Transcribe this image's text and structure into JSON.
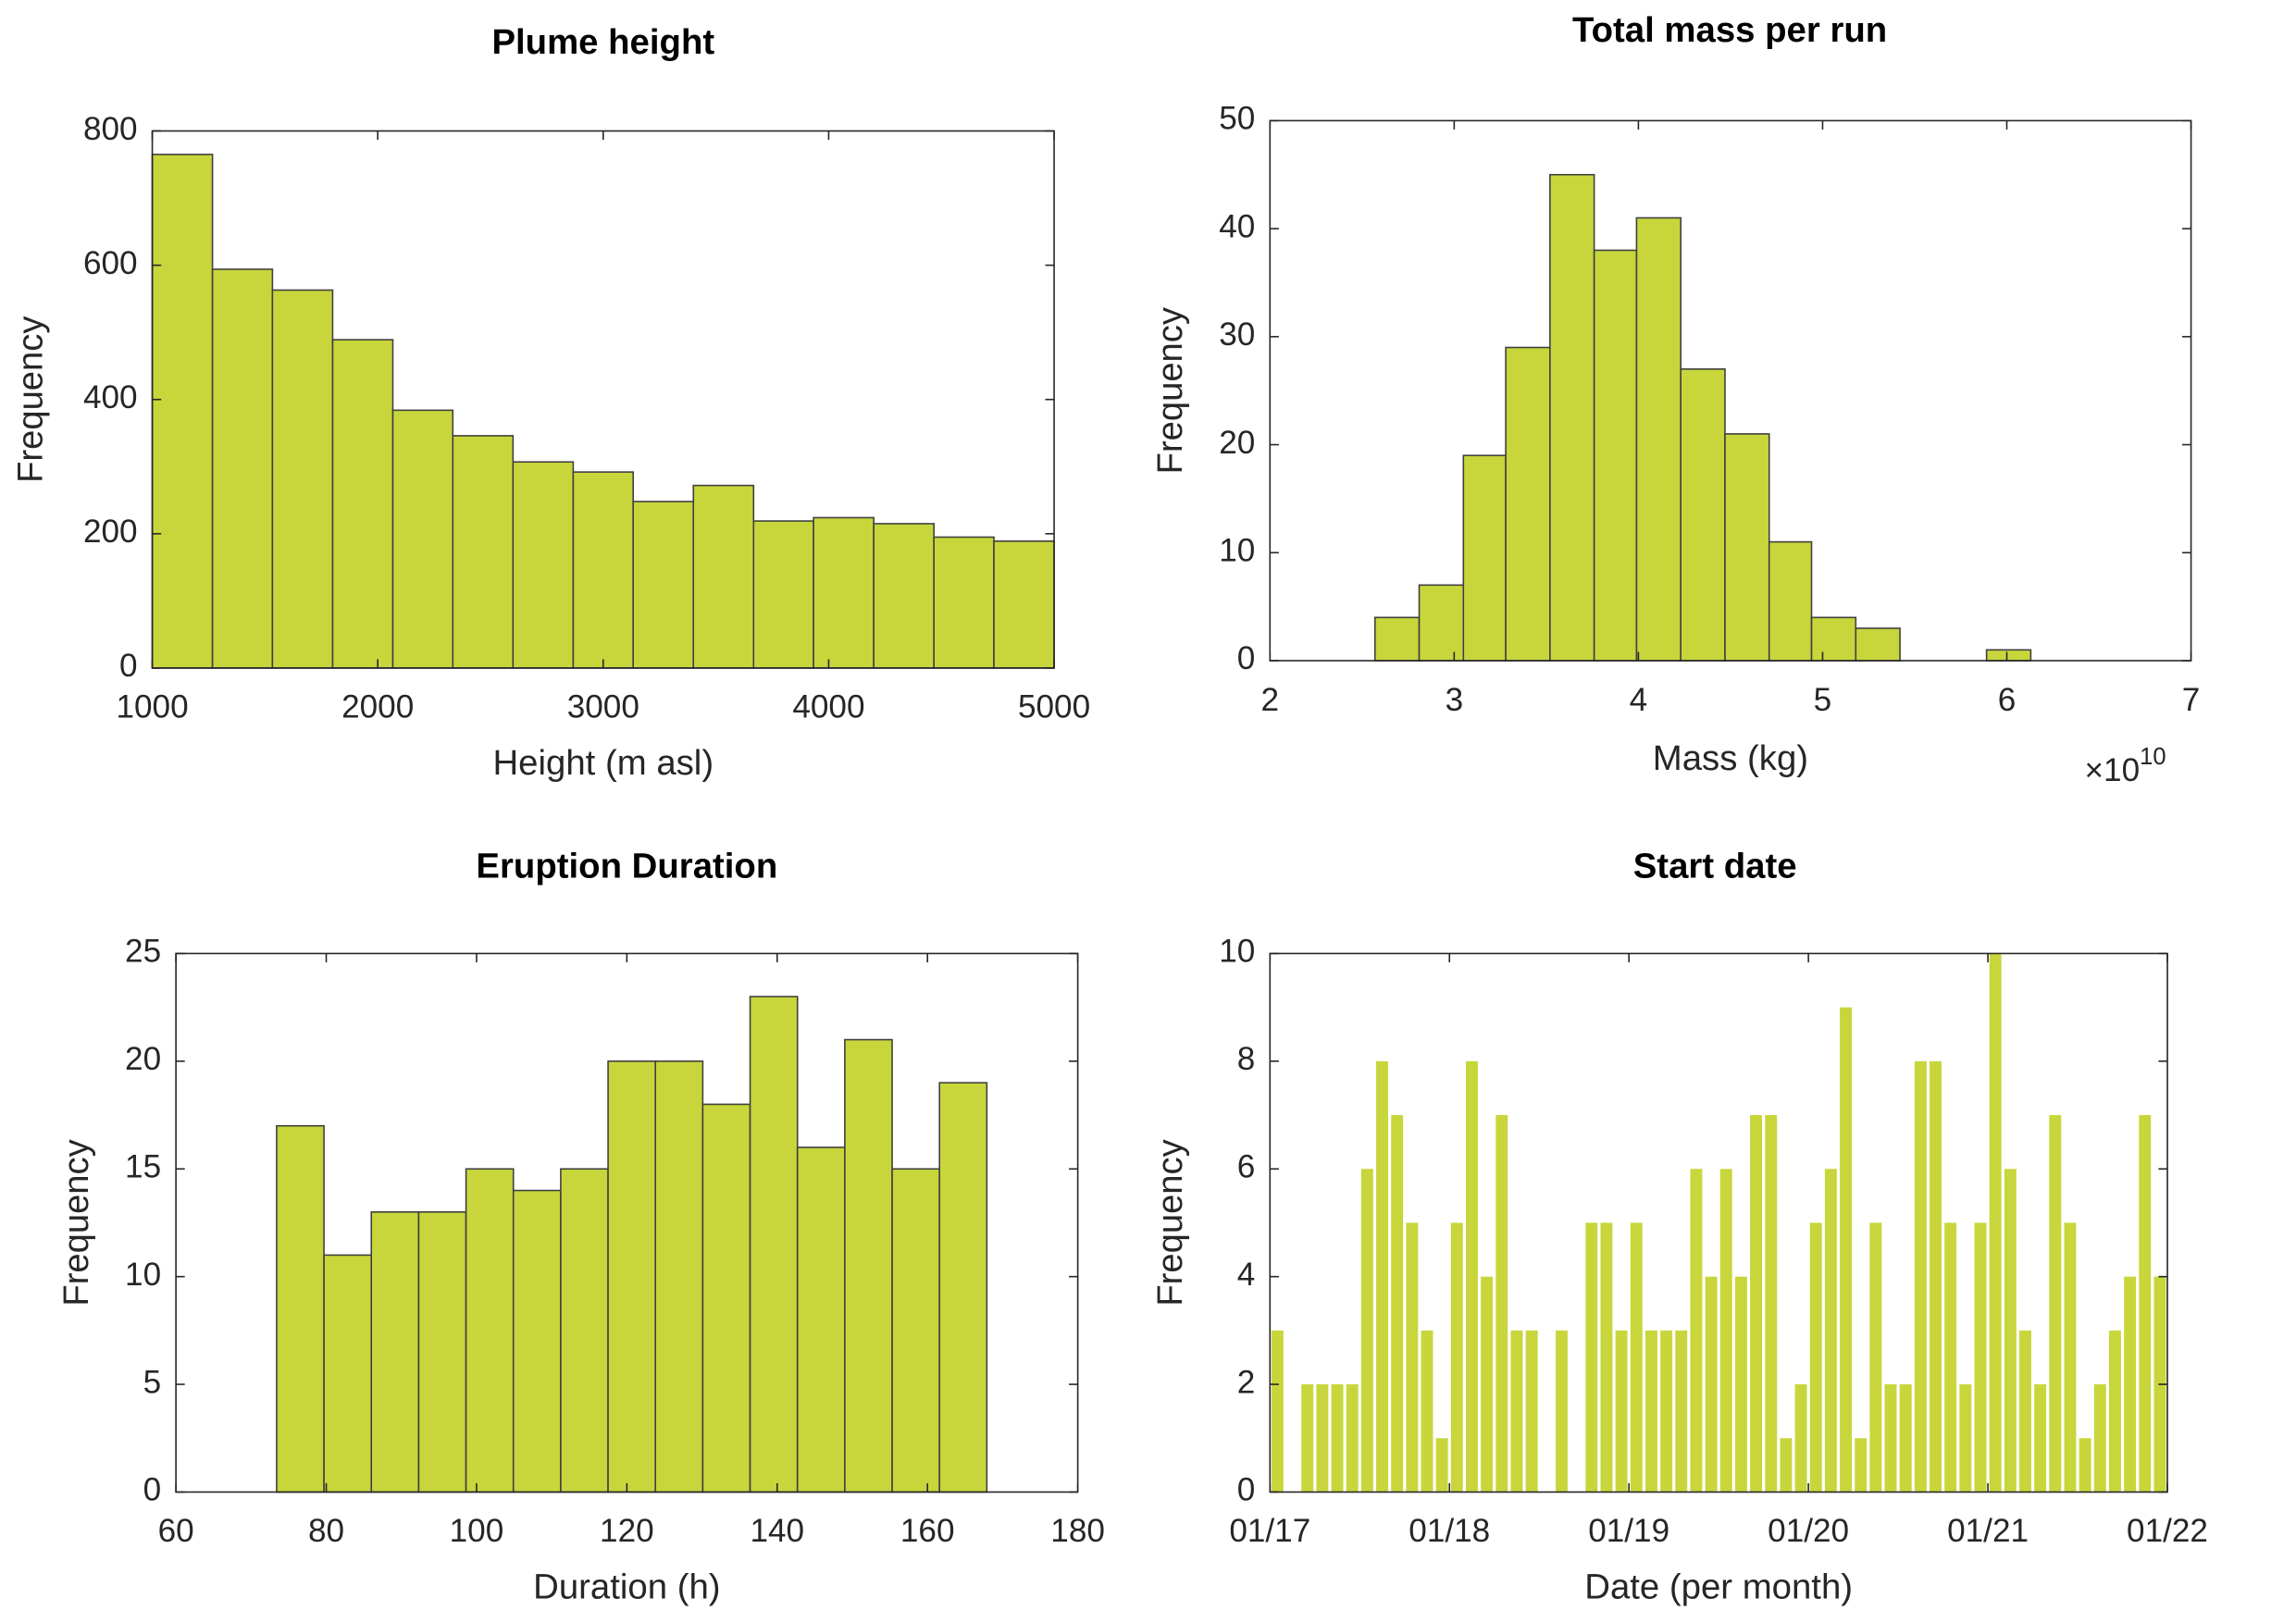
{
  "chart_data": [
    {
      "type": "histogram",
      "title": "Plume height",
      "x_label": "Height (m asl)",
      "y_label": "Frequency",
      "bins": [
        1000,
        1267,
        1533,
        1800,
        2067,
        2333,
        2600,
        2867,
        3133,
        3400,
        3667,
        3933,
        4200,
        4467,
        4733,
        5000
      ],
      "values": [
        765,
        594,
        563,
        489,
        384,
        346,
        307,
        292,
        248,
        272,
        219,
        224,
        215,
        195,
        189
      ],
      "color": "#c8d63c",
      "edgecolor": "#404040",
      "xlim": [
        1000,
        5000
      ],
      "xticks": [
        1000,
        2000,
        3000,
        4000,
        5000
      ],
      "ylim": [
        0,
        800
      ],
      "yticks": [
        0,
        200,
        400,
        600,
        800
      ]
    },
    {
      "type": "histogram",
      "title": "Total mass per run",
      "x_label": "Mass (kg)",
      "y_label": "Frequency",
      "x_multiplier": "×10",
      "x_multiplier_exponent": "10",
      "bins": [
        2.57,
        2.81,
        3.05,
        3.28,
        3.52,
        3.76,
        3.99,
        4.23,
        4.47,
        4.71,
        4.94,
        5.18,
        5.42,
        5.65,
        5.89,
        6.13
      ],
      "values": [
        4,
        7,
        19,
        29,
        45,
        38,
        41,
        27,
        21,
        11,
        4,
        3,
        0,
        0,
        1
      ],
      "color": "#c8d63c",
      "edgecolor": "#404040",
      "xlim": [
        2,
        7
      ],
      "xticks": [
        2,
        3,
        4,
        5,
        6,
        7
      ],
      "ylim": [
        0,
        50
      ],
      "yticks": [
        0,
        10,
        20,
        30,
        40,
        50
      ]
    },
    {
      "type": "histogram",
      "title": "Eruption Duration",
      "x_label": "Duration (h)",
      "y_label": "Frequency",
      "bins": [
        73.4,
        79.7,
        86.0,
        92.3,
        98.6,
        104.9,
        111.2,
        117.5,
        123.8,
        130.1,
        136.4,
        142.7,
        149.0,
        155.3,
        161.6,
        167.9
      ],
      "values": [
        17,
        11,
        13,
        13,
        15,
        14,
        15,
        20,
        20,
        18,
        23,
        16,
        21,
        15,
        19
      ],
      "color": "#c8d63c",
      "edgecolor": "#404040",
      "xlim": [
        60,
        180
      ],
      "xticks": [
        60,
        80,
        100,
        120,
        140,
        160,
        180
      ],
      "ylim": [
        0,
        25
      ],
      "yticks": [
        0,
        5,
        10,
        15,
        20,
        25
      ]
    },
    {
      "type": "histogram",
      "title": "Start date",
      "x_label": "Date (per month)",
      "y_label": "Frequency",
      "bins": [
        "2017-01",
        "2017-02",
        "2017-03",
        "2017-04",
        "2017-05",
        "2017-06",
        "2017-07",
        "2017-08",
        "2017-09",
        "2017-10",
        "2017-11",
        "2017-12",
        "2018-01",
        "2018-02",
        "2018-03",
        "2018-04",
        "2018-05",
        "2018-06",
        "2018-07",
        "2018-08",
        "2018-09",
        "2018-10",
        "2018-11",
        "2018-12",
        "2019-01",
        "2019-02",
        "2019-03",
        "2019-04",
        "2019-05",
        "2019-06",
        "2019-07",
        "2019-08",
        "2019-09",
        "2019-10",
        "2019-11",
        "2019-12",
        "2020-01",
        "2020-02",
        "2020-03",
        "2020-04",
        "2020-05",
        "2020-06",
        "2020-07",
        "2020-08",
        "2020-09",
        "2020-10",
        "2020-11",
        "2020-12",
        "2021-01",
        "2021-02",
        "2021-03",
        "2021-04",
        "2021-05",
        "2021-06",
        "2021-07",
        "2021-08",
        "2021-09",
        "2021-10",
        "2021-11",
        "2021-12",
        "2022-01"
      ],
      "values": [
        3,
        0,
        2,
        2,
        2,
        2,
        6,
        8,
        7,
        5,
        3,
        1,
        5,
        8,
        4,
        7,
        3,
        3,
        0,
        3,
        0,
        5,
        5,
        3,
        5,
        3,
        3,
        3,
        6,
        4,
        6,
        4,
        7,
        7,
        1,
        2,
        5,
        6,
        9,
        1,
        5,
        2,
        2,
        8,
        8,
        5,
        2,
        5,
        10,
        6,
        3,
        2,
        7,
        5,
        1,
        2,
        3,
        4,
        7,
        4
      ],
      "color": "#c8d63c",
      "edgecolor": "none",
      "xlim": [
        "2017-01",
        "2022-01"
      ],
      "xticks": [
        {
          "value": "2017-01",
          "label": "01/17"
        },
        {
          "value": "2018-01",
          "label": "01/18"
        },
        {
          "value": "2019-01",
          "label": "01/19"
        },
        {
          "value": "2020-01",
          "label": "01/20"
        },
        {
          "value": "2021-01",
          "label": "01/21"
        },
        {
          "value": "2022-01",
          "label": "01/22"
        }
      ],
      "ylim": [
        0,
        10
      ],
      "yticks": [
        0,
        2,
        4,
        6,
        8,
        10
      ]
    }
  ]
}
